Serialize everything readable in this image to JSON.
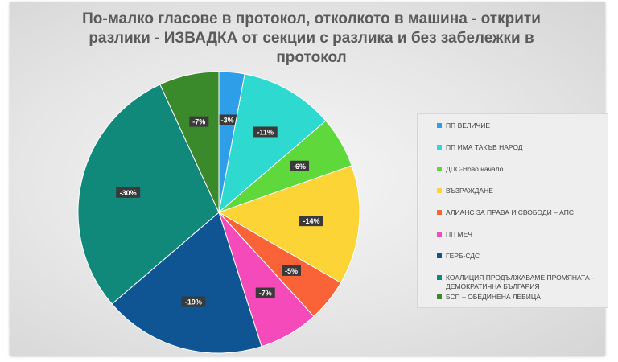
{
  "chart_data": {
    "type": "pie",
    "title": "По-малко гласове в протокол, отколкото в машина - открити разлики - ИЗВАДКА от секции с разлика и без забележки в протокол",
    "legend_position": "right",
    "slices": [
      {
        "name": "ПП ВЕЛИЧИЕ",
        "value": 3,
        "label": "-3%",
        "color": "#2e9ee8"
      },
      {
        "name": "ПП ИМА ТАКЪВ НАРОД",
        "value": 11,
        "label": "-11%",
        "color": "#2ed9cf"
      },
      {
        "name": "ДПС-Ново начало",
        "value": 6,
        "label": "-6%",
        "color": "#5fd83c"
      },
      {
        "name": "ВЪЗРАЖДАНЕ",
        "value": 14,
        "label": "-14%",
        "color": "#fdd436"
      },
      {
        "name": "АЛИАНС ЗА ПРАВА И СВОБОДИ – АПС",
        "value": 5,
        "label": "-5%",
        "color": "#fa6338"
      },
      {
        "name": "ПП МЕЧ",
        "value": 7,
        "label": "-7%",
        "color": "#f54bba"
      },
      {
        "name": "ГЕРБ-СДС",
        "value": 19,
        "label": "-19%",
        "color": "#0f5493"
      },
      {
        "name": "КОАЛИЦИЯ ПРОДЪЛЖАВАМЕ ПРОМЯНАТА – ДЕМОКРАТИЧНА БЪЛГАРИЯ",
        "value": 30,
        "label": "-30%",
        "color": "#10897a"
      },
      {
        "name": "БСП – ОБЕДИНЕНА ЛЕВИЦА",
        "value": 7,
        "label": "-7%",
        "color": "#3a8a2c"
      }
    ]
  }
}
